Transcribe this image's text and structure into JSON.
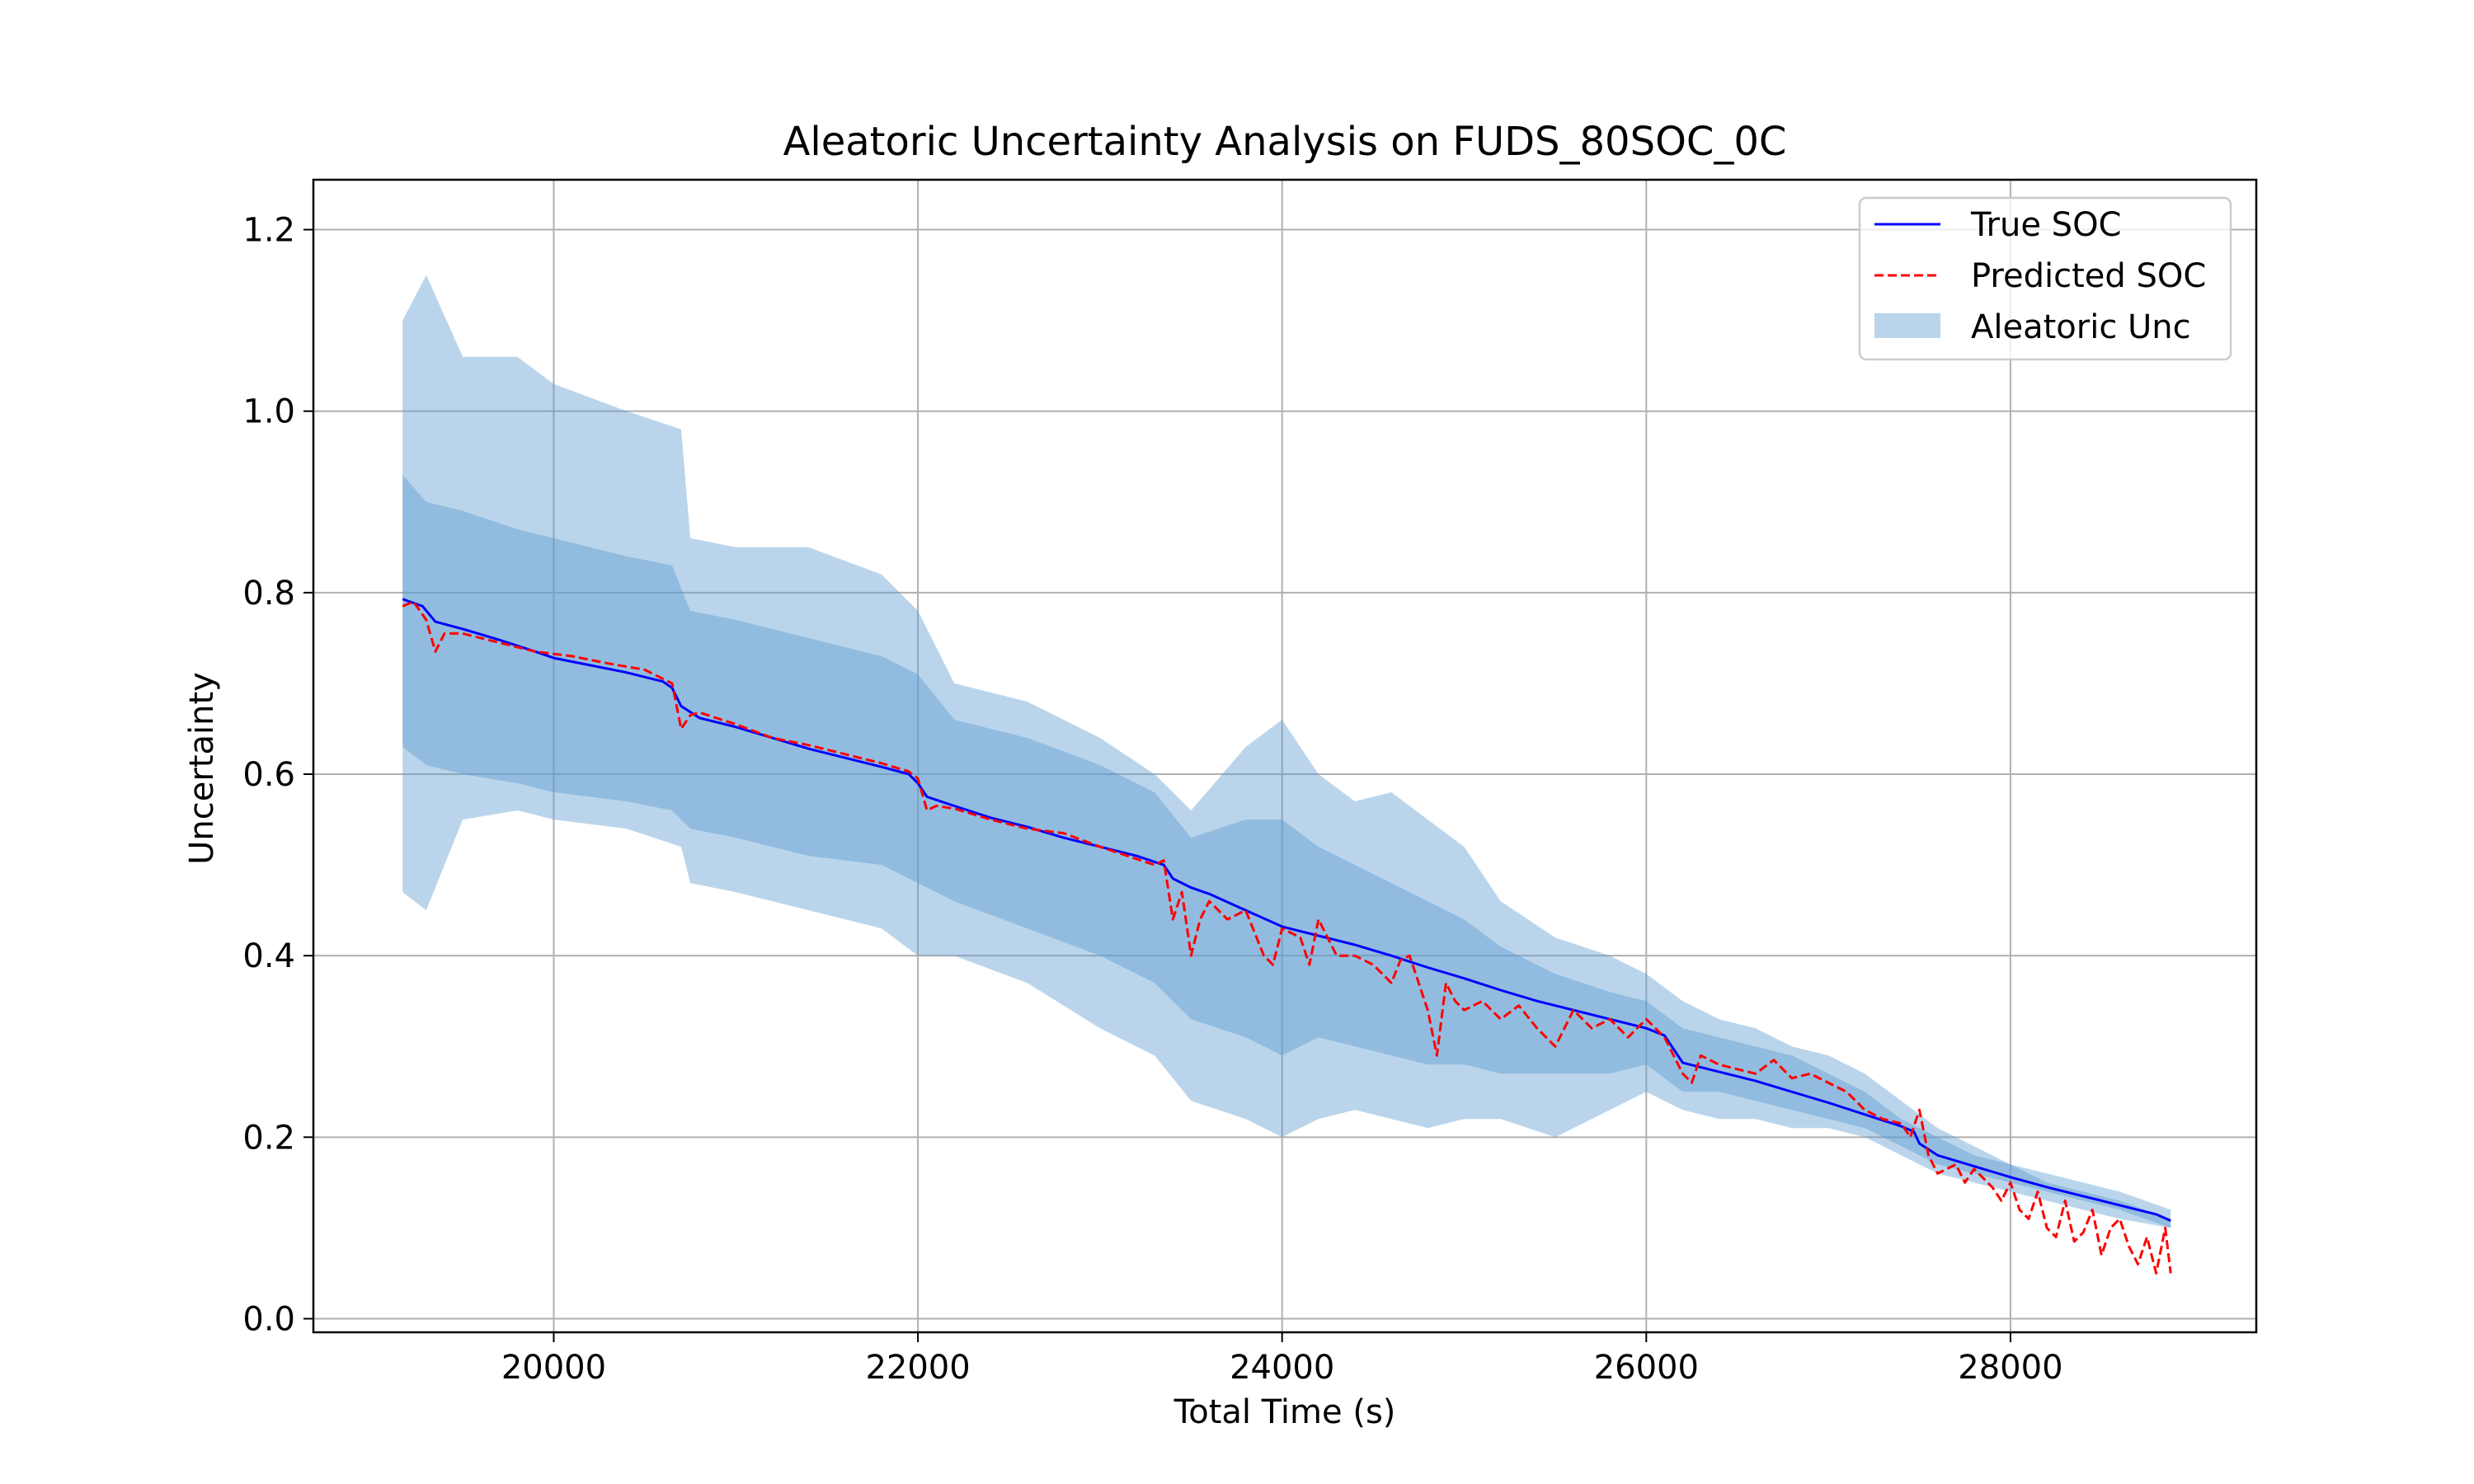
{
  "chart_data": {
    "type": "line",
    "title": "Aleatoric Uncertainty Analysis on FUDS_80SOC_0C",
    "xlabel": "Total Time (s)",
    "ylabel": "Uncertainty",
    "xlim": [
      18680,
      29350
    ],
    "ylim": [
      -0.015,
      1.255
    ],
    "xticks": [
      20000,
      22000,
      24000,
      26000,
      28000
    ],
    "xtick_labels": [
      "20000",
      "22000",
      "24000",
      "26000",
      "28000"
    ],
    "yticks": [
      0.0,
      0.2,
      0.4,
      0.6,
      0.8,
      1.0,
      1.2
    ],
    "ytick_labels": [
      "0.0",
      "0.2",
      "0.4",
      "0.6",
      "0.8",
      "1.0",
      "1.2"
    ],
    "grid": true,
    "legend_position": "top-right",
    "colors": {
      "true_soc": "#0000ff",
      "predicted_soc": "#ff0000",
      "band": "#5b9bd0"
    },
    "series": [
      {
        "name": "True SOC",
        "style": "solid",
        "x": [
          19170,
          19280,
          19350,
          19500,
          19700,
          19900,
          20000,
          20200,
          20400,
          20600,
          20650,
          20700,
          20800,
          21000,
          21200,
          21400,
          21600,
          21800,
          21950,
          22000,
          22050,
          22200,
          22400,
          22600,
          22800,
          23000,
          23200,
          23350,
          23400,
          23500,
          23600,
          23800,
          24000,
          24200,
          24400,
          24600,
          24800,
          25000,
          25200,
          25400,
          25600,
          25800,
          26000,
          26100,
          26200,
          26400,
          26600,
          26800,
          27000,
          27200,
          27400,
          27470,
          27500,
          27600,
          27800,
          28000,
          28200,
          28400,
          28600,
          28800,
          28880
        ],
        "values": [
          0.793,
          0.785,
          0.768,
          0.76,
          0.748,
          0.735,
          0.728,
          0.72,
          0.712,
          0.702,
          0.695,
          0.675,
          0.662,
          0.652,
          0.64,
          0.628,
          0.618,
          0.608,
          0.6,
          0.59,
          0.575,
          0.565,
          0.552,
          0.542,
          0.53,
          0.52,
          0.51,
          0.5,
          0.485,
          0.475,
          0.468,
          0.45,
          0.432,
          0.422,
          0.412,
          0.4,
          0.387,
          0.375,
          0.362,
          0.35,
          0.34,
          0.33,
          0.32,
          0.312,
          0.282,
          0.272,
          0.262,
          0.25,
          0.238,
          0.225,
          0.212,
          0.206,
          0.193,
          0.18,
          0.168,
          0.156,
          0.145,
          0.135,
          0.125,
          0.115,
          0.108
        ]
      },
      {
        "name": "Predicted SOC",
        "style": "dashed",
        "x": [
          19170,
          19230,
          19300,
          19350,
          19400,
          19500,
          19700,
          19900,
          20100,
          20300,
          20500,
          20650,
          20700,
          20750,
          20800,
          21000,
          21200,
          21400,
          21600,
          21800,
          21950,
          22000,
          22050,
          22100,
          22200,
          22400,
          22600,
          22800,
          23000,
          23150,
          23300,
          23350,
          23400,
          23450,
          23500,
          23550,
          23600,
          23700,
          23800,
          23900,
          23950,
          24000,
          24100,
          24150,
          24200,
          24300,
          24400,
          24500,
          24600,
          24650,
          24700,
          24800,
          24850,
          24900,
          24950,
          25000,
          25100,
          25200,
          25300,
          25400,
          25500,
          25600,
          25700,
          25800,
          25900,
          26000,
          26100,
          26200,
          26250,
          26300,
          26400,
          26500,
          26600,
          26700,
          26800,
          26900,
          27000,
          27100,
          27200,
          27300,
          27400,
          27450,
          27500,
          27550,
          27600,
          27700,
          27750,
          27800,
          27900,
          27950,
          28000,
          28050,
          28100,
          28150,
          28200,
          28250,
          28300,
          28350,
          28400,
          28450,
          28500,
          28550,
          28600,
          28650,
          28700,
          28750,
          28800,
          28850,
          28880
        ],
        "values": [
          0.785,
          0.79,
          0.77,
          0.735,
          0.755,
          0.755,
          0.745,
          0.735,
          0.73,
          0.722,
          0.715,
          0.7,
          0.65,
          0.665,
          0.668,
          0.655,
          0.64,
          0.632,
          0.622,
          0.612,
          0.603,
          0.595,
          0.56,
          0.565,
          0.562,
          0.55,
          0.54,
          0.535,
          0.52,
          0.51,
          0.5,
          0.505,
          0.44,
          0.47,
          0.4,
          0.44,
          0.46,
          0.44,
          0.45,
          0.4,
          0.39,
          0.43,
          0.42,
          0.39,
          0.44,
          0.4,
          0.4,
          0.39,
          0.37,
          0.395,
          0.4,
          0.34,
          0.29,
          0.37,
          0.35,
          0.34,
          0.35,
          0.33,
          0.345,
          0.32,
          0.3,
          0.34,
          0.32,
          0.33,
          0.31,
          0.33,
          0.31,
          0.27,
          0.26,
          0.29,
          0.28,
          0.275,
          0.27,
          0.285,
          0.265,
          0.27,
          0.26,
          0.25,
          0.23,
          0.22,
          0.215,
          0.2,
          0.23,
          0.18,
          0.16,
          0.17,
          0.15,
          0.165,
          0.145,
          0.13,
          0.15,
          0.12,
          0.11,
          0.14,
          0.1,
          0.09,
          0.13,
          0.085,
          0.095,
          0.12,
          0.07,
          0.1,
          0.11,
          0.08,
          0.06,
          0.09,
          0.05,
          0.1,
          0.05
        ]
      }
    ],
    "bands": [
      {
        "name": "Aleatoric Unc",
        "opacity": 0.42,
        "x": [
          19170,
          19300,
          19500,
          19800,
          20000,
          20400,
          20700,
          20750,
          21000,
          21400,
          21800,
          22000,
          22200,
          22600,
          23000,
          23300,
          23500,
          23800,
          24000,
          24200,
          24400,
          24600,
          24800,
          25000,
          25200,
          25500,
          25800,
          26000,
          26200,
          26400,
          26600,
          26800,
          27000,
          27200,
          27400,
          27600,
          27800,
          28000,
          28200,
          28400,
          28600,
          28880
        ],
        "lower": [
          0.47,
          0.45,
          0.55,
          0.56,
          0.55,
          0.54,
          0.52,
          0.48,
          0.47,
          0.45,
          0.43,
          0.4,
          0.4,
          0.37,
          0.32,
          0.29,
          0.24,
          0.22,
          0.2,
          0.22,
          0.23,
          0.22,
          0.21,
          0.22,
          0.22,
          0.2,
          0.23,
          0.25,
          0.23,
          0.22,
          0.22,
          0.21,
          0.21,
          0.2,
          0.18,
          0.16,
          0.15,
          0.14,
          0.13,
          0.12,
          0.11,
          0.1
        ],
        "upper": [
          1.1,
          1.15,
          1.06,
          1.06,
          1.03,
          1.0,
          0.98,
          0.86,
          0.85,
          0.85,
          0.82,
          0.78,
          0.7,
          0.68,
          0.64,
          0.6,
          0.56,
          0.63,
          0.66,
          0.6,
          0.57,
          0.58,
          0.55,
          0.52,
          0.46,
          0.42,
          0.4,
          0.38,
          0.35,
          0.33,
          0.32,
          0.3,
          0.29,
          0.27,
          0.24,
          0.21,
          0.19,
          0.17,
          0.16,
          0.15,
          0.14,
          0.12
        ]
      },
      {
        "name": "",
        "opacity": 0.42,
        "x": [
          19170,
          19300,
          19500,
          19800,
          20000,
          20400,
          20650,
          20750,
          21000,
          21400,
          21800,
          22000,
          22200,
          22600,
          23000,
          23300,
          23500,
          23800,
          24000,
          24200,
          24400,
          24600,
          24800,
          25000,
          25200,
          25500,
          25800,
          26000,
          26200,
          26400,
          26600,
          26800,
          27000,
          27200,
          27400,
          27600,
          27800,
          28000,
          28200,
          28400,
          28600,
          28880
        ],
        "lower": [
          0.63,
          0.61,
          0.6,
          0.59,
          0.58,
          0.57,
          0.56,
          0.54,
          0.53,
          0.51,
          0.5,
          0.48,
          0.46,
          0.43,
          0.4,
          0.37,
          0.33,
          0.31,
          0.29,
          0.31,
          0.3,
          0.29,
          0.28,
          0.28,
          0.27,
          0.27,
          0.27,
          0.28,
          0.25,
          0.25,
          0.24,
          0.23,
          0.22,
          0.21,
          0.19,
          0.17,
          0.16,
          0.15,
          0.14,
          0.13,
          0.12,
          0.1
        ],
        "upper": [
          0.93,
          0.9,
          0.89,
          0.87,
          0.86,
          0.84,
          0.83,
          0.78,
          0.77,
          0.75,
          0.73,
          0.71,
          0.66,
          0.64,
          0.61,
          0.58,
          0.53,
          0.55,
          0.55,
          0.52,
          0.5,
          0.48,
          0.46,
          0.44,
          0.41,
          0.38,
          0.36,
          0.35,
          0.32,
          0.31,
          0.3,
          0.29,
          0.27,
          0.25,
          0.22,
          0.2,
          0.18,
          0.17,
          0.15,
          0.14,
          0.13,
          0.11
        ]
      }
    ]
  }
}
